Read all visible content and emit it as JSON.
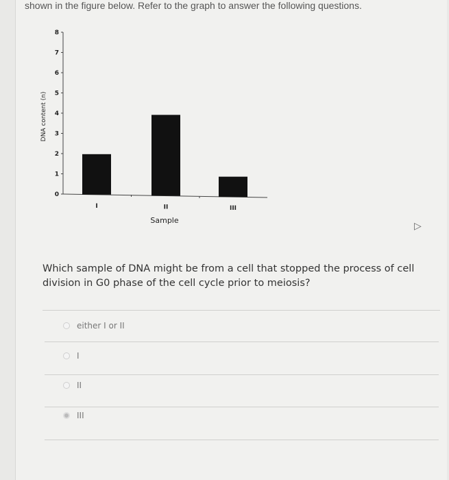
{
  "intro_text": "shown in the figure below. Refer to the graph to answer the following questions.",
  "chart_data": {
    "type": "bar",
    "categories": [
      "I",
      "II",
      "III"
    ],
    "values": [
      2,
      4,
      1
    ],
    "xlabel": "Sample",
    "ylabel": "DNA content (n)",
    "ylim": [
      0,
      8
    ],
    "yticks": [
      "0",
      "1",
      "2",
      "3",
      "4",
      "5",
      "6",
      "7",
      "8"
    ],
    "grid": false,
    "bar_color": "#111111"
  },
  "question": {
    "text": "Which sample of DNA might be from a cell that stopped the process of cell division in G0 phase of the cell cycle prior to meiosis?",
    "options": [
      {
        "label": "either I or II",
        "selected": false
      },
      {
        "label": "I",
        "selected": false
      },
      {
        "label": "II",
        "selected": false
      },
      {
        "label": "III",
        "selected": true
      }
    ]
  }
}
